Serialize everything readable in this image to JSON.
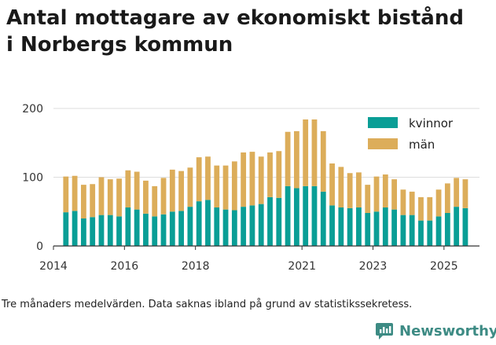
{
  "title_line1": "Antal mottagare av ekonomiskt bistånd",
  "title_line2": "i Norbergs kommun",
  "footnote": "Tre månaders medelvärden. Data saknas ibland på grund av statistikssekretess.",
  "brand": "Newsworthy",
  "colors": {
    "kvinnor": "#0a9e96",
    "man": "#dcad5a",
    "grid": "#dddddd",
    "axis": "#333333",
    "brand": "#3d8b84"
  },
  "chart_data": {
    "type": "bar",
    "stacked": true,
    "title": "Antal mottagare av ekonomiskt bistånd i Norbergs kommun",
    "xlabel": "",
    "ylabel": "",
    "ylim": [
      0,
      200
    ],
    "yticks": [
      0,
      100,
      200
    ],
    "xlim": [
      2014.0,
      2026.0
    ],
    "xticks": [
      "2014",
      "2016",
      "2018",
      "2021",
      "2023",
      "2025"
    ],
    "xtick_values": [
      2014.0,
      2016.0,
      2018.0,
      2021.0,
      2023.0,
      2025.0
    ],
    "legend": [
      "kvinnor",
      "män"
    ],
    "legend_position": "top-right",
    "x": [
      2014.35,
      2014.6,
      2014.85,
      2015.1,
      2015.35,
      2015.6,
      2015.85,
      2016.1,
      2016.35,
      2016.6,
      2016.85,
      2017.1,
      2017.35,
      2017.6,
      2017.85,
      2018.1,
      2018.35,
      2018.6,
      2018.85,
      2019.1,
      2019.35,
      2019.6,
      2019.85,
      2020.1,
      2020.35,
      2020.6,
      2020.85,
      2021.1,
      2021.35,
      2021.6,
      2021.85,
      2022.1,
      2022.35,
      2022.6,
      2022.85,
      2023.1,
      2023.35,
      2023.6,
      2023.85,
      2024.1,
      2024.35,
      2024.6,
      2024.85,
      2025.1,
      2025.35,
      2025.6
    ],
    "series": [
      {
        "name": "kvinnor",
        "values": [
          49,
          51,
          40,
          42,
          45,
          45,
          43,
          56,
          53,
          47,
          43,
          46,
          50,
          51,
          57,
          65,
          67,
          56,
          53,
          52,
          57,
          59,
          61,
          71,
          70,
          87,
          84,
          87,
          87,
          79,
          59,
          56,
          55,
          56,
          48,
          50,
          56,
          53,
          45,
          45,
          37,
          37,
          43,
          48,
          57,
          55
        ]
      },
      {
        "name": "män",
        "values": [
          52,
          51,
          49,
          48,
          55,
          52,
          55,
          54,
          55,
          48,
          44,
          53,
          61,
          58,
          57,
          64,
          63,
          61,
          64,
          71,
          79,
          78,
          69,
          65,
          68,
          79,
          83,
          97,
          97,
          88,
          61,
          59,
          51,
          51,
          41,
          51,
          48,
          44,
          37,
          34,
          34,
          34,
          39,
          43,
          42,
          42
        ]
      }
    ]
  }
}
